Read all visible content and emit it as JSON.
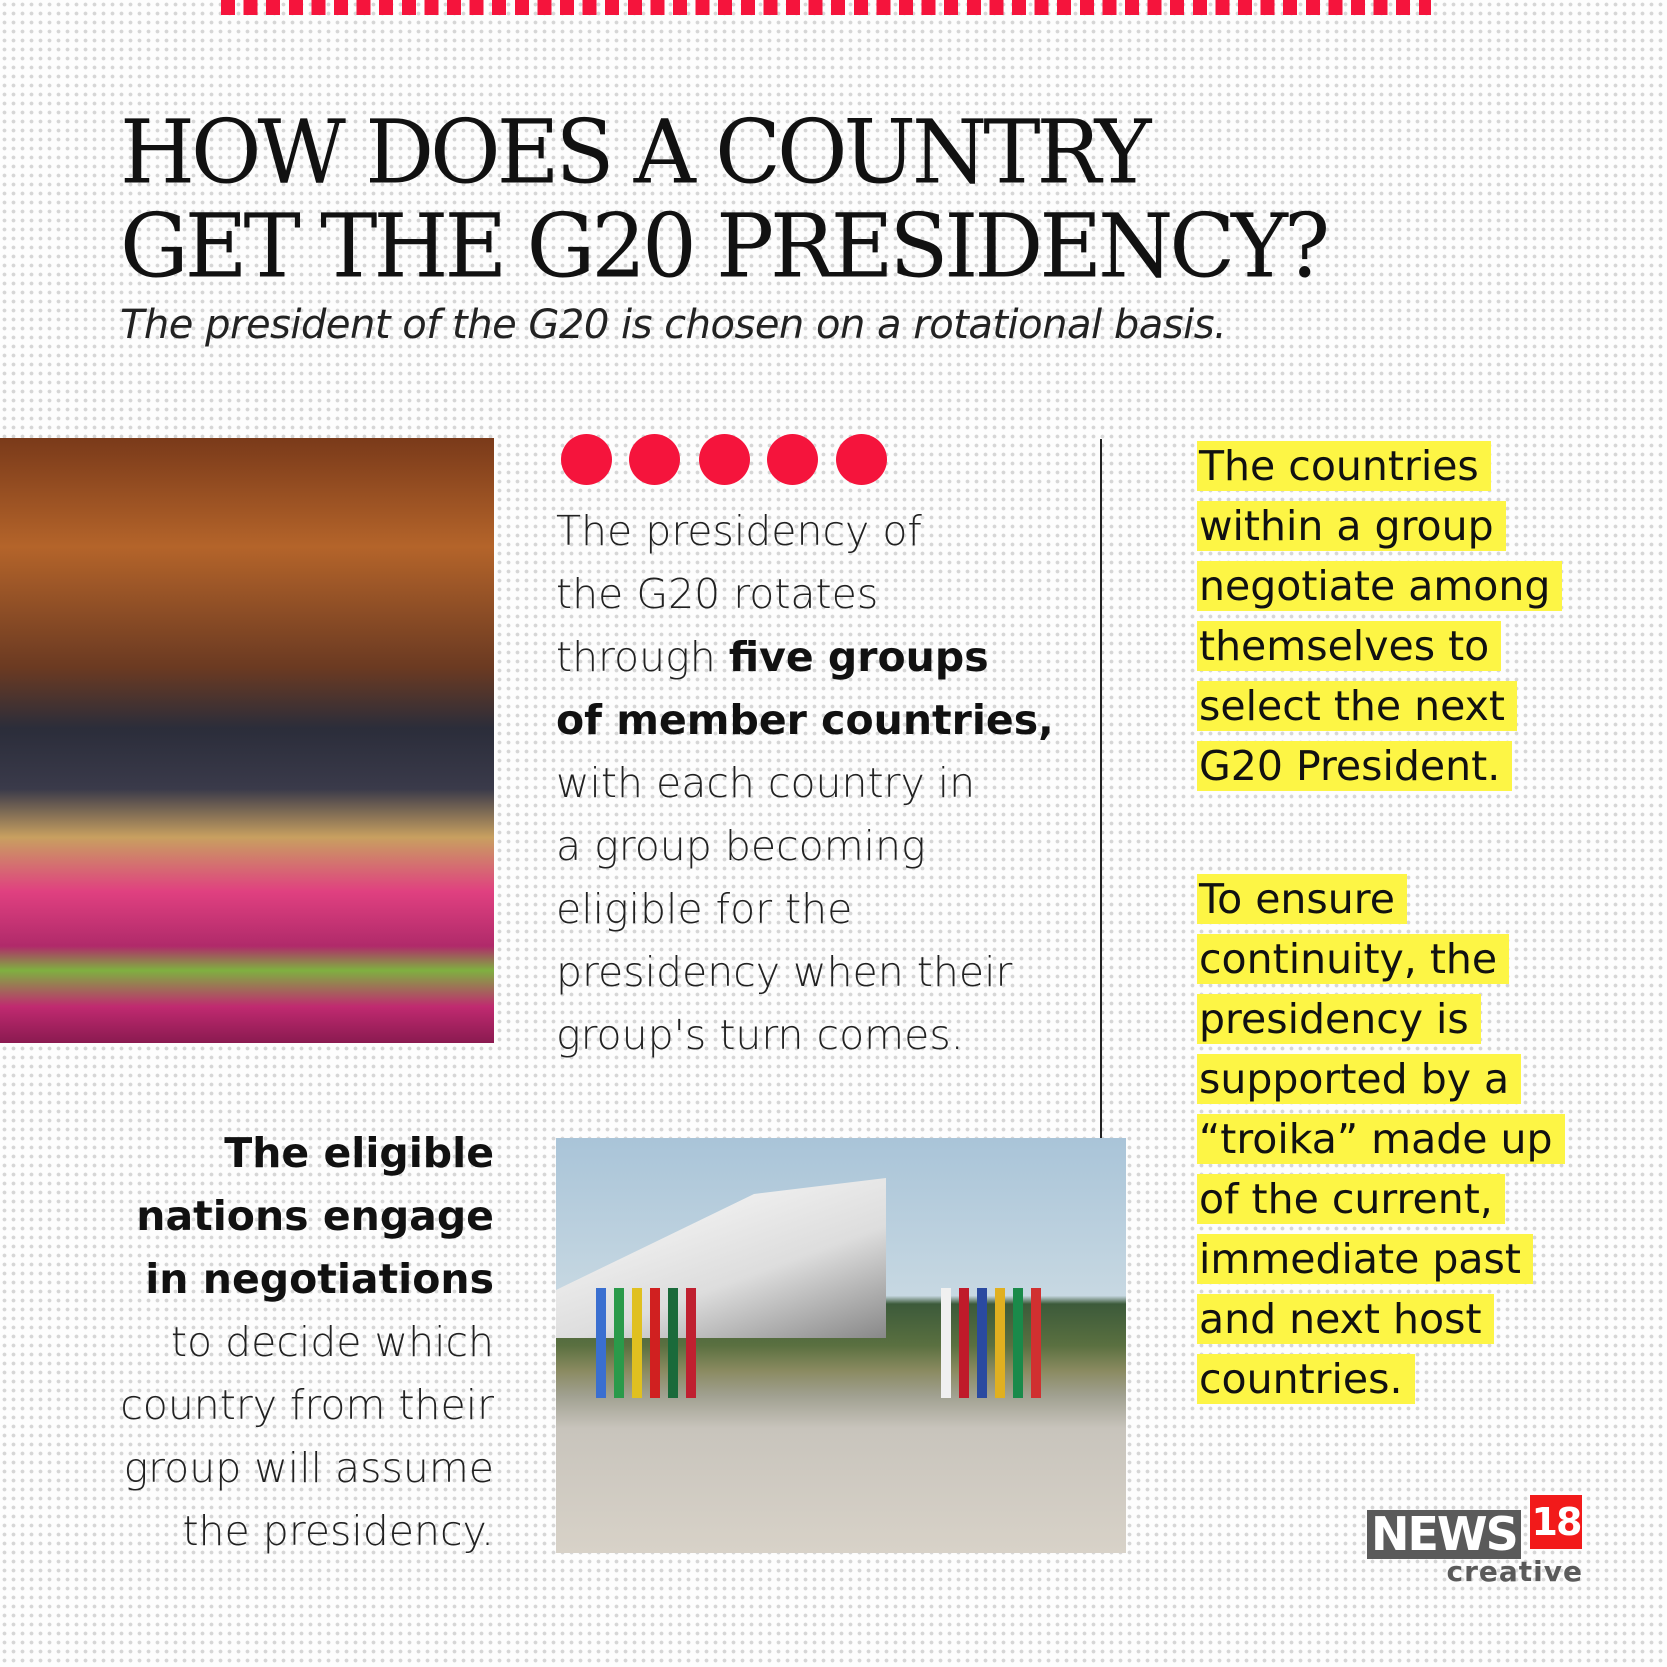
{
  "title_lines": [
    "HOW DOES A COUNTRY",
    "GET THE G20 PRESIDENCY?"
  ],
  "subtitle": "The president of the G20 is chosen on a rotational basis.",
  "dots_count": 5,
  "accent_color": "#f5143c",
  "highlight_color": "#fdf545",
  "middle": {
    "l1": "The presidency of",
    "l2": "the G20 rotates",
    "l3a": "through ",
    "l3b": "five groups",
    "l4": "of member countries,",
    "l5": "with each country in",
    "l6": "a group becoming",
    "l7": "eligible for the",
    "l8": "presidency when their",
    "l9": "group's turn comes."
  },
  "bottom_left": {
    "b1": "The eligible",
    "b2": "nations engage",
    "b3": "in negotiations",
    "l4": "to decide which",
    "l5": "country from their",
    "l6": "group will assume",
    "l7": "the presidency."
  },
  "right_block_1": [
    "The countries",
    "within a group",
    "negotiate among",
    "themselves to",
    "select the next",
    "G20 President."
  ],
  "right_block_2": [
    "To ensure",
    "continuity, the",
    "presidency is",
    "supported by a",
    "“troika” made up",
    "of the current,",
    "immediate past",
    "and next host",
    "countries."
  ],
  "logo": {
    "news": "NEWS",
    "number": "18",
    "sub": "creative"
  }
}
